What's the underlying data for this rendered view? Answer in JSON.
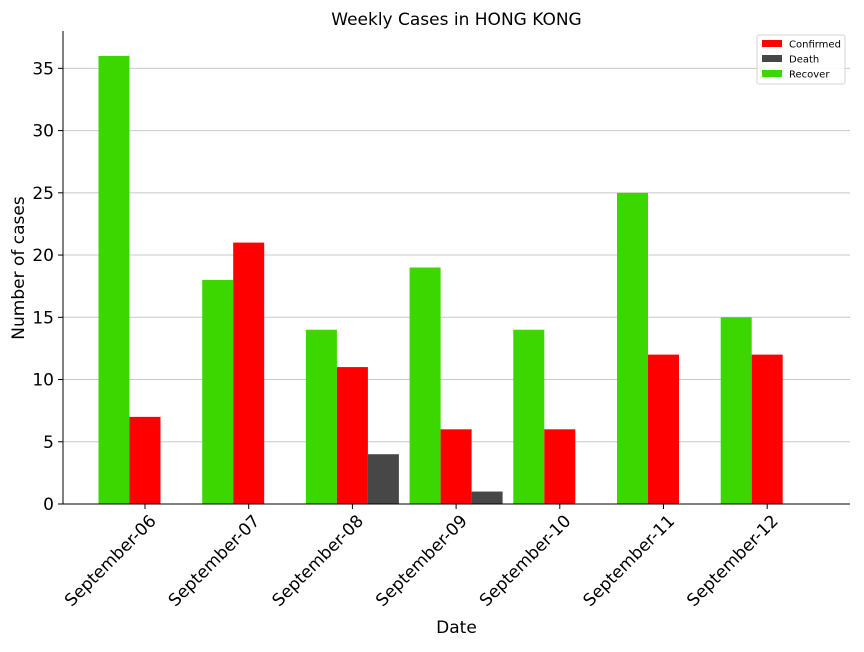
{
  "chart_data": {
    "type": "bar",
    "title": "Weekly Cases in HONG KONG",
    "xlabel": "Date",
    "ylabel": "Number of cases",
    "categories": [
      "September-06",
      "September-07",
      "September-08",
      "September-09",
      "September-10",
      "September-11",
      "September-12"
    ],
    "series": [
      {
        "name": "Recover",
        "color": "#3cd700",
        "values": [
          36,
          18,
          14,
          19,
          14,
          25,
          15
        ]
      },
      {
        "name": "Confirmed",
        "color": "#ff0000",
        "values": [
          7,
          21,
          11,
          6,
          6,
          12,
          12
        ]
      },
      {
        "name": "Death",
        "color": "#474747",
        "values": [
          0,
          0,
          4,
          1,
          0,
          0,
          0
        ]
      }
    ],
    "legend_order": [
      "Confirmed",
      "Death",
      "Recover"
    ],
    "legend_position": "top-right",
    "ylim": [
      0,
      38
    ],
    "yticks": [
      0,
      5,
      10,
      15,
      20,
      25,
      30,
      35
    ],
    "grid": "y",
    "grid_color": "#c8c8c8"
  }
}
